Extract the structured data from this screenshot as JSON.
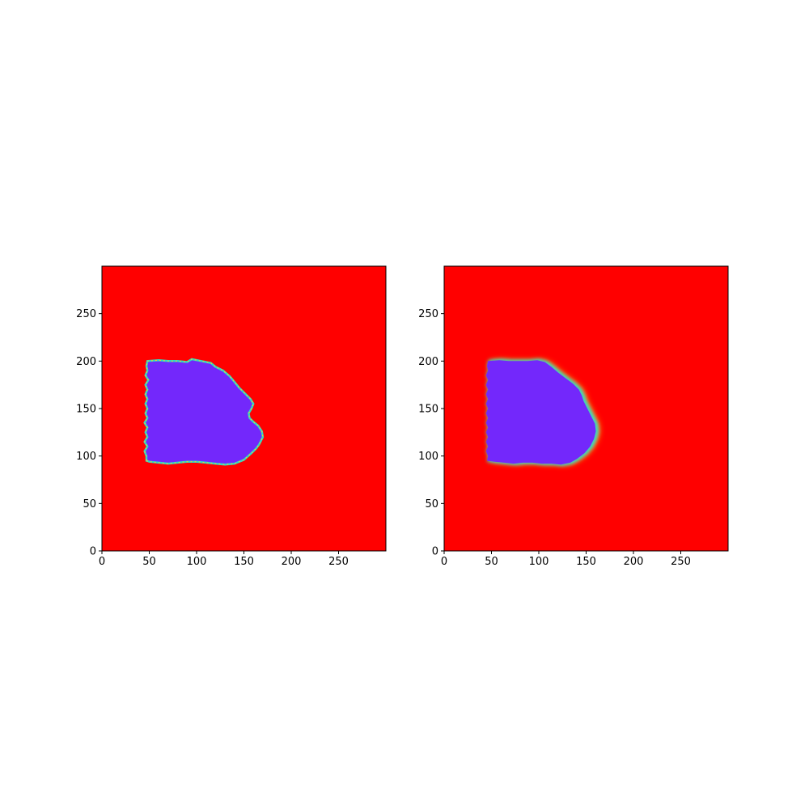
{
  "chart_data": [
    {
      "type": "heatmap",
      "colormap": "rainbow",
      "xlim": [
        0,
        300
      ],
      "ylim": [
        0,
        300
      ],
      "origin": "lower",
      "x_ticks": [
        0,
        50,
        100,
        150,
        200,
        250
      ],
      "y_ticks": [
        0,
        50,
        100,
        150,
        200,
        250
      ],
      "x_tick_labels": [
        "0",
        "50",
        "100",
        "150",
        "200",
        "250"
      ],
      "y_tick_labels": [
        "0",
        "50",
        "100",
        "150",
        "200",
        "250"
      ],
      "background_color": "#ff0000",
      "region_color": "#7328fb",
      "edge_color": "#2fd8c8",
      "edge_style": "sharp",
      "region_outline": [
        [
          47,
          95
        ],
        [
          50,
          94
        ],
        [
          60,
          93
        ],
        [
          70,
          92
        ],
        [
          80,
          93
        ],
        [
          90,
          94
        ],
        [
          100,
          94
        ],
        [
          110,
          93
        ],
        [
          120,
          92
        ],
        [
          130,
          91
        ],
        [
          140,
          92
        ],
        [
          150,
          96
        ],
        [
          158,
          103
        ],
        [
          163,
          108
        ],
        [
          166,
          112
        ],
        [
          168,
          116
        ],
        [
          170,
          120
        ],
        [
          169,
          126
        ],
        [
          165,
          132
        ],
        [
          160,
          136
        ],
        [
          156,
          140
        ],
        [
          155,
          145
        ],
        [
          158,
          150
        ],
        [
          160,
          155
        ],
        [
          157,
          160
        ],
        [
          152,
          165
        ],
        [
          145,
          172
        ],
        [
          140,
          178
        ],
        [
          135,
          184
        ],
        [
          128,
          190
        ],
        [
          120,
          194
        ],
        [
          115,
          198
        ],
        [
          105,
          200
        ],
        [
          95,
          202
        ],
        [
          90,
          199
        ],
        [
          80,
          200
        ],
        [
          70,
          200
        ],
        [
          60,
          201
        ],
        [
          48,
          200
        ],
        [
          47,
          195
        ],
        [
          48,
          190
        ],
        [
          46,
          185
        ],
        [
          49,
          180
        ],
        [
          46,
          175
        ],
        [
          48,
          170
        ],
        [
          46,
          165
        ],
        [
          48,
          160
        ],
        [
          46,
          155
        ],
        [
          48,
          150
        ],
        [
          46,
          145
        ],
        [
          48,
          140
        ],
        [
          45,
          135
        ],
        [
          48,
          130
        ],
        [
          46,
          125
        ],
        [
          48,
          120
        ],
        [
          45,
          115
        ],
        [
          48,
          110
        ],
        [
          45,
          105
        ],
        [
          47,
          100
        ]
      ]
    },
    {
      "type": "heatmap",
      "colormap": "rainbow",
      "xlim": [
        0,
        300
      ],
      "ylim": [
        0,
        300
      ],
      "origin": "lower",
      "x_ticks": [
        0,
        50,
        100,
        150,
        200,
        250
      ],
      "y_ticks": [
        0,
        50,
        100,
        150,
        200,
        250
      ],
      "x_tick_labels": [
        "0",
        "50",
        "100",
        "150",
        "200",
        "250"
      ],
      "y_tick_labels": [
        "0",
        "50",
        "100",
        "150",
        "200",
        "250"
      ],
      "background_color": "#ff0000",
      "region_color": "#7328fb",
      "edge_color": "#2fd8c8",
      "edge_style": "blurred",
      "region_outline": [
        [
          47,
          95
        ],
        [
          55,
          94
        ],
        [
          65,
          93
        ],
        [
          75,
          92
        ],
        [
          85,
          93
        ],
        [
          95,
          93
        ],
        [
          105,
          92
        ],
        [
          115,
          92
        ],
        [
          125,
          91
        ],
        [
          135,
          93
        ],
        [
          142,
          97
        ],
        [
          150,
          103
        ],
        [
          156,
          110
        ],
        [
          160,
          118
        ],
        [
          162,
          126
        ],
        [
          161,
          134
        ],
        [
          158,
          140
        ],
        [
          155,
          146
        ],
        [
          152,
          152
        ],
        [
          149,
          158
        ],
        [
          147,
          164
        ],
        [
          144,
          170
        ],
        [
          138,
          176
        ],
        [
          130,
          182
        ],
        [
          122,
          188
        ],
        [
          115,
          194
        ],
        [
          108,
          199
        ],
        [
          100,
          201
        ],
        [
          90,
          200
        ],
        [
          80,
          200
        ],
        [
          70,
          200
        ],
        [
          60,
          201
        ],
        [
          48,
          200
        ],
        [
          47,
          195
        ],
        [
          48,
          190
        ],
        [
          46,
          185
        ],
        [
          48,
          180
        ],
        [
          46,
          175
        ],
        [
          48,
          170
        ],
        [
          46,
          165
        ],
        [
          48,
          160
        ],
        [
          46,
          155
        ],
        [
          48,
          150
        ],
        [
          46,
          145
        ],
        [
          48,
          140
        ],
        [
          46,
          135
        ],
        [
          48,
          130
        ],
        [
          46,
          125
        ],
        [
          48,
          120
        ],
        [
          46,
          115
        ],
        [
          48,
          110
        ],
        [
          46,
          105
        ],
        [
          48,
          100
        ]
      ]
    }
  ]
}
